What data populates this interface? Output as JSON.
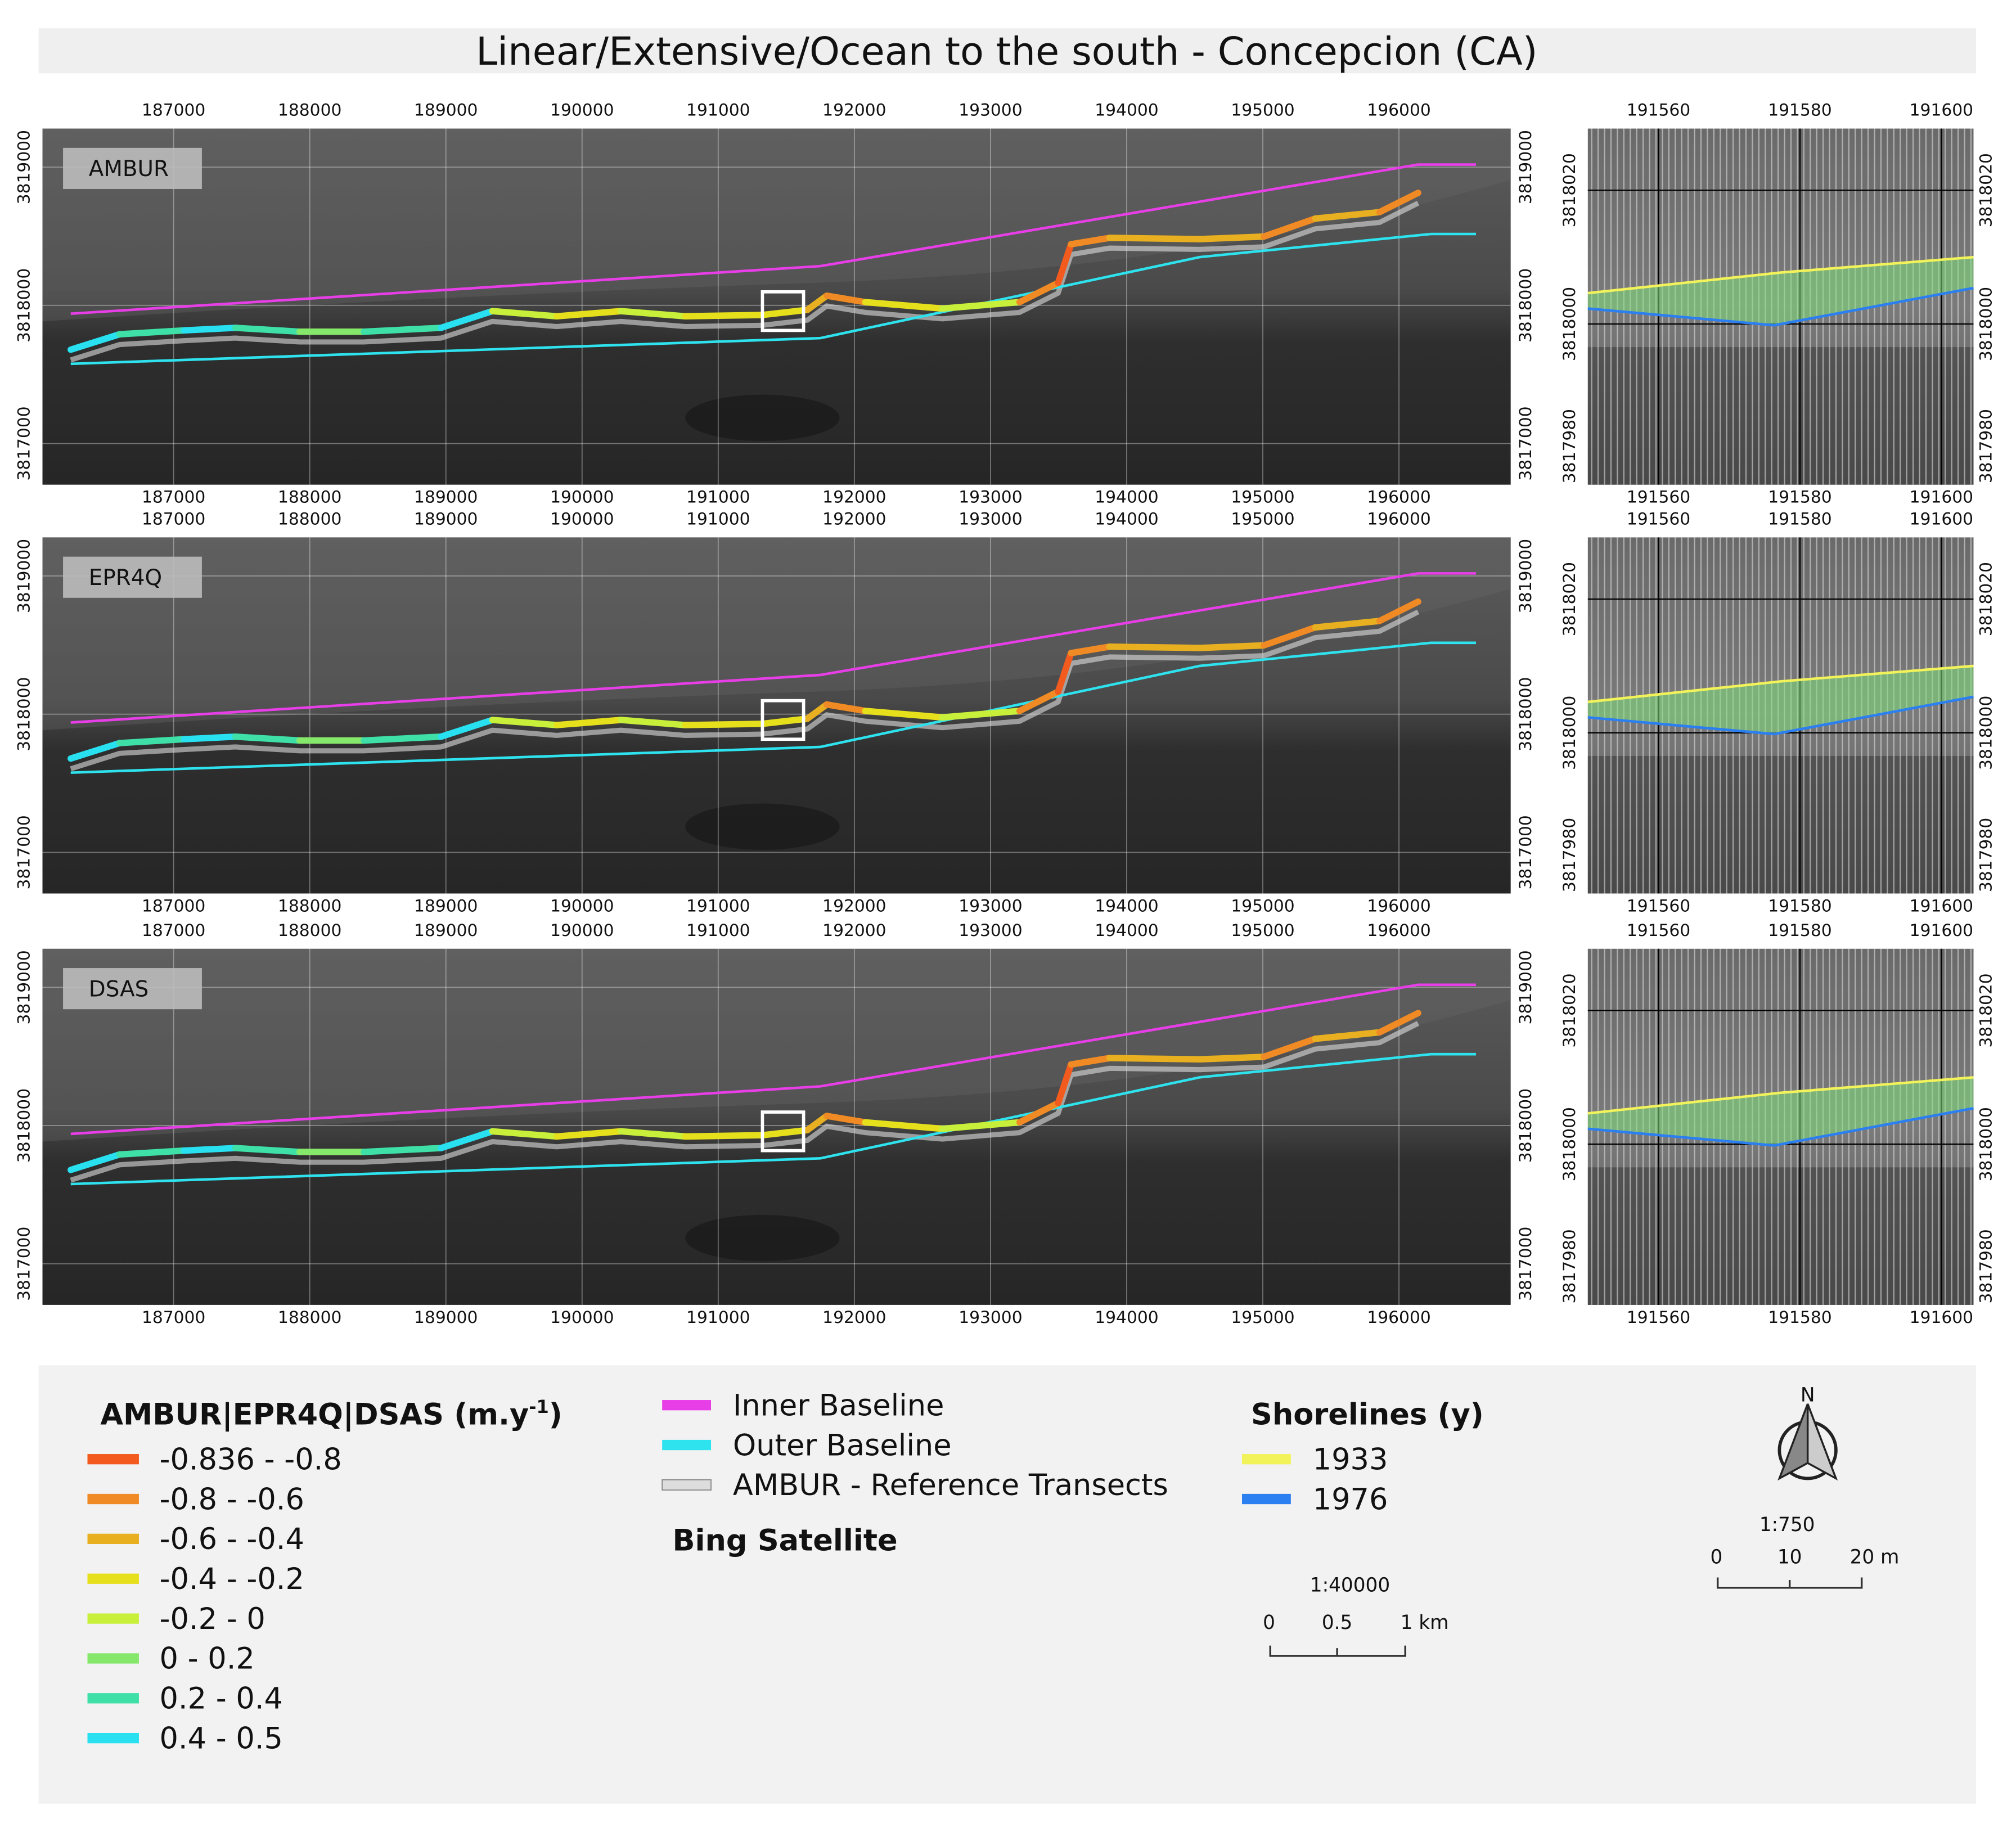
{
  "title": "Linear/Extensive/Ocean to the south - Concepcion (CA)",
  "main_map": {
    "xticks": [
      187000,
      188000,
      189000,
      190000,
      191000,
      192000,
      193000,
      194000,
      195000,
      196000
    ],
    "yticks": [
      3819000,
      3818000,
      3817000
    ]
  },
  "inset_map": {
    "xticks": [
      191560,
      191580,
      191600
    ],
    "yticks": [
      3818020,
      3818000,
      3817980
    ]
  },
  "panels": [
    {
      "label": "AMBUR"
    },
    {
      "label": "EPR4Q"
    },
    {
      "label": "DSAS"
    }
  ],
  "legend": {
    "rate_title": [
      "AMBUR|EPR4Q|DSAS (m.y",
      "-1",
      ")"
    ],
    "rate_classes": [
      {
        "label": "-0.836 - -0.8",
        "color": "#f25a1e"
      },
      {
        "label": "-0.8 - -0.6",
        "color": "#f08a24"
      },
      {
        "label": "-0.6 - -0.4",
        "color": "#e8b020"
      },
      {
        "label": "-0.4 - -0.2",
        "color": "#e6e01c"
      },
      {
        "label": "-0.2 - 0",
        "color": "#c8f03a"
      },
      {
        "label": "0 - 0.2",
        "color": "#86e86a"
      },
      {
        "label": "0.2 - 0.4",
        "color": "#3ee0a8"
      },
      {
        "label": "0.4 - 0.5",
        "color": "#28e0f0"
      }
    ],
    "layers": [
      {
        "label": "Inner Baseline",
        "color": "#e83ee8"
      },
      {
        "label": "Outer Baseline",
        "color": "#2ee2ee"
      },
      {
        "label": "AMBUR - Reference Transects",
        "color": "#dddddd"
      }
    ],
    "basemap": "Bing Satellite",
    "shorelines_title": "Shorelines (y)",
    "shorelines": [
      {
        "label": "1933",
        "color": "#f2f25a"
      },
      {
        "label": "1976",
        "color": "#2b7ff0"
      }
    ]
  },
  "north": "N",
  "scale_inset": {
    "ratio": "1:750",
    "labels": [
      "0",
      "10",
      "20 m"
    ]
  },
  "scale_main": {
    "ratio": "1:40000",
    "labels": [
      "0",
      "0.5",
      "1 km"
    ]
  }
}
